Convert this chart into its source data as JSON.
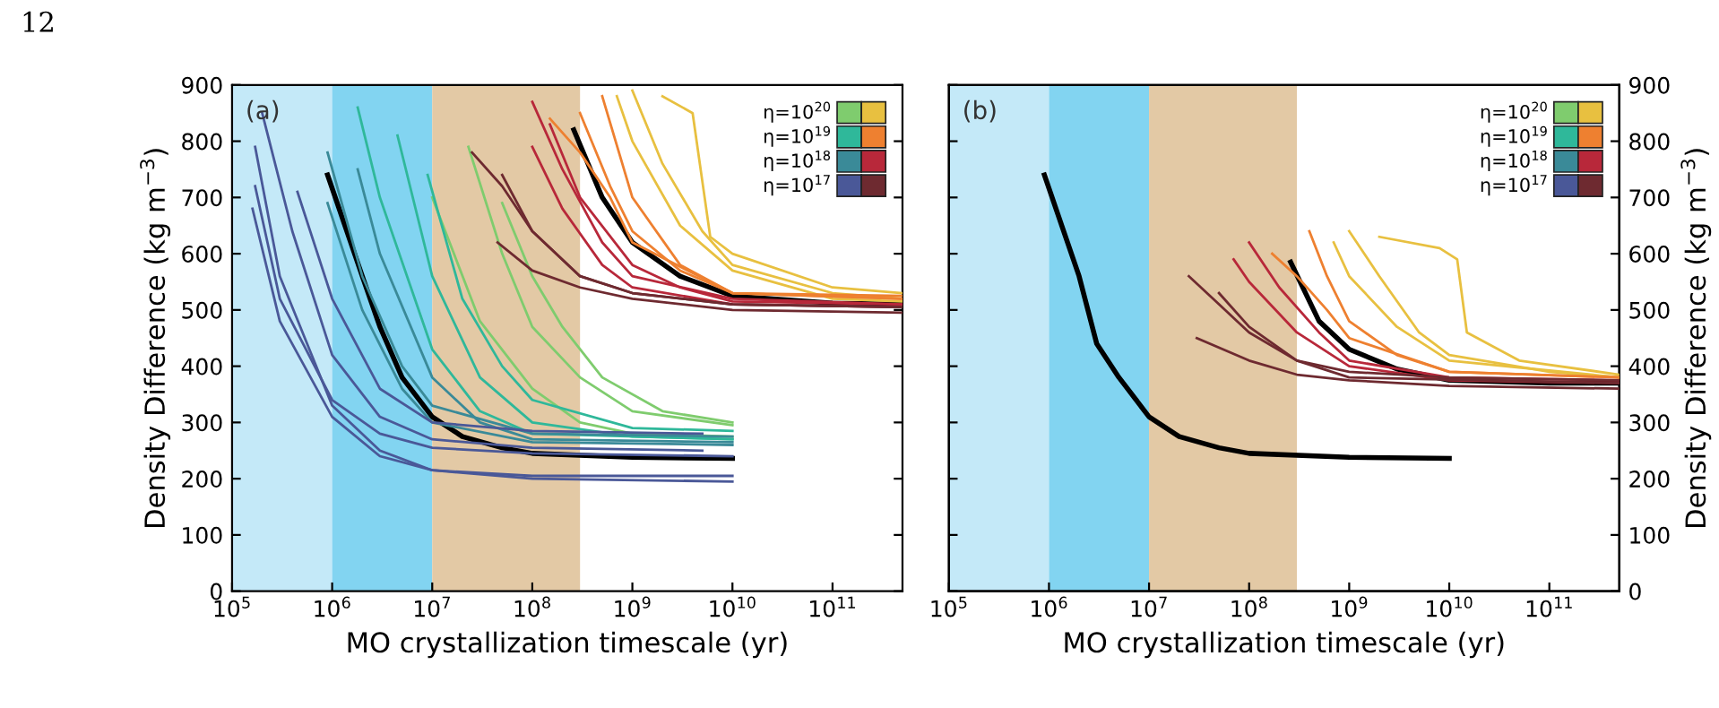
{
  "chart_data": [
    {
      "type": "line",
      "annotations": [
        "12",
        "(a)"
      ],
      "xlabel": "MO crystallization timescale (yr)",
      "ylabel": "Density Difference (kg m$^{−3}$)",
      "log": "x",
      "xlim": [
        100000,
        500000000000
      ],
      "xticks": [
        {
          "value": 100000,
          "label": "10$^{5}$"
        },
        {
          "value": 1000000,
          "label": "10$^{6}$"
        },
        {
          "value": 10000000,
          "label": "10$^{7}$"
        },
        {
          "value": 100000000,
          "label": "10$^{8}$"
        },
        {
          "value": 1000000000,
          "label": "10$^{9}$"
        },
        {
          "value": 10000000000,
          "label": "10$^{10}$"
        },
        {
          "value": 100000000000,
          "label": "10$^{11}$"
        }
      ],
      "ylim": [
        0,
        900
      ],
      "yticks": [
        0,
        100,
        200,
        300,
        400,
        500,
        600,
        700,
        800,
        900
      ],
      "grid": false,
      "legend": "top right",
      "bands": [
        {
          "axis": "x",
          "from": 100000,
          "to": 1000000,
          "color": "#c4e9f8"
        },
        {
          "axis": "x",
          "from": 1000000,
          "to": 10000000,
          "color": "#82d4f1"
        },
        {
          "axis": "x",
          "from": 10000000,
          "to": 300000000,
          "color": "#e3c9a5"
        }
      ],
      "series": [
        {
          "color": "#000000",
          "x": [
            900000,
            2000000,
            3000000,
            5000000,
            10000000,
            20000000,
            50000000,
            100000000,
            1000000000,
            10000000000
          ],
          "values": [
            740,
            560,
            470,
            380,
            310,
            275,
            255,
            245,
            238,
            236
          ]
        },
        {
          "color": "#000000",
          "x": [
            260000000,
            500000000,
            1000000000,
            3000000000,
            10000000000,
            100000000000,
            500000000000
          ],
          "values": [
            820,
            700,
            620,
            560,
            525,
            512,
            510
          ]
        },
        {
          "name": "η=10$^{20}$",
          "color": "#7fcc6e",
          "x": [
            23000000,
            50000000,
            100000000,
            300000000,
            1000000000,
            10000000000
          ],
          "values": [
            790,
            600,
            470,
            380,
            320,
            295
          ]
        },
        {
          "color": "#7fcc6e",
          "x": [
            50000000,
            100000000,
            200000000,
            500000000,
            2000000000,
            10000000000
          ],
          "values": [
            690,
            560,
            470,
            380,
            320,
            300
          ]
        },
        {
          "color": "#7fcc6e",
          "x": [
            10000000,
            30000000,
            100000000,
            300000000,
            1000000000,
            10000000000
          ],
          "values": [
            700,
            480,
            360,
            300,
            280,
            275
          ]
        },
        {
          "color": "#e8c040",
          "x": [
            1000000000,
            2000000000,
            5000000000,
            10000000000,
            100000000000,
            500000000000
          ],
          "values": [
            890,
            760,
            640,
            580,
            530,
            520
          ]
        },
        {
          "color": "#e8c040",
          "x": [
            2000000000,
            4000000000,
            6000000000,
            10000000000,
            100000000000,
            500000000000
          ],
          "values": [
            880,
            850,
            630,
            600,
            540,
            530
          ]
        },
        {
          "color": "#e8c040",
          "x": [
            700000000,
            1000000000,
            3000000000,
            10000000000,
            100000000000,
            500000000000
          ],
          "values": [
            880,
            800,
            650,
            570,
            520,
            515
          ]
        },
        {
          "name": "η=10$^{19}$",
          "color": "#2fb89a",
          "x": [
            1800000,
            3000000,
            10000000,
            30000000,
            100000000,
            10000000000
          ],
          "values": [
            860,
            700,
            430,
            320,
            280,
            270
          ]
        },
        {
          "color": "#2fb89a",
          "x": [
            4500000,
            10000000,
            30000000,
            100000000,
            1000000000,
            10000000000
          ],
          "values": [
            810,
            560,
            380,
            300,
            275,
            270
          ]
        },
        {
          "color": "#2fb89a",
          "x": [
            9000000,
            20000000,
            50000000,
            100000000,
            1000000000,
            10000000000
          ],
          "values": [
            740,
            520,
            400,
            340,
            290,
            285
          ]
        },
        {
          "color": "#ee8030",
          "x": [
            150000000,
            300000000,
            600000000,
            1000000000,
            10000000000,
            500000000000
          ],
          "values": [
            840,
            780,
            700,
            620,
            530,
            520
          ]
        },
        {
          "color": "#ee8030",
          "x": [
            500000000,
            1000000000,
            3000000000,
            10000000000,
            500000000000
          ],
          "values": [
            880,
            700,
            580,
            530,
            520
          ]
        },
        {
          "color": "#ee8030",
          "x": [
            300000000,
            600000000,
            1000000000,
            3000000000,
            10000000000,
            500000000000
          ],
          "values": [
            850,
            720,
            640,
            570,
            530,
            525
          ]
        },
        {
          "name": "η=10$^{18}$",
          "color": "#3a8a98",
          "x": [
            900000,
            2000000,
            5000000,
            10000000,
            100000000,
            10000000000
          ],
          "values": [
            780,
            560,
            400,
            330,
            280,
            275
          ]
        },
        {
          "color": "#3a8a98",
          "x": [
            1800000,
            3000000,
            10000000,
            30000000,
            100000000,
            10000000000
          ],
          "values": [
            750,
            600,
            380,
            300,
            270,
            265
          ]
        },
        {
          "color": "#3a8a98",
          "x": [
            900000,
            2000000,
            5000000,
            10000000,
            100000000,
            10000000000
          ],
          "values": [
            690,
            500,
            360,
            300,
            265,
            260
          ]
        },
        {
          "color": "#b8283a",
          "x": [
            100000000,
            200000000,
            500000000,
            1000000000,
            10000000000,
            500000000000
          ],
          "values": [
            870,
            750,
            620,
            560,
            520,
            510
          ]
        },
        {
          "color": "#b8283a",
          "x": [
            100000000,
            200000000,
            500000000,
            1000000000,
            10000000000,
            500000000000
          ],
          "values": [
            790,
            680,
            580,
            540,
            510,
            505
          ]
        },
        {
          "color": "#b8283a",
          "x": [
            150000000,
            300000000,
            1000000000,
            3000000000,
            10000000000,
            500000000000
          ],
          "values": [
            830,
            700,
            580,
            540,
            515,
            510
          ]
        },
        {
          "name": "η=10$^{17}$",
          "color": "#4a5898",
          "x": [
            170000,
            300000,
            1000000,
            3000000,
            10000000,
            100000000,
            10000000000
          ],
          "values": [
            790,
            560,
            330,
            250,
            215,
            200,
            195
          ]
        },
        {
          "color": "#4a5898",
          "x": [
            170000,
            300000,
            1000000,
            3000000,
            10000000,
            100000000,
            10000000000
          ],
          "values": [
            720,
            520,
            340,
            280,
            255,
            245,
            240
          ]
        },
        {
          "color": "#4a5898",
          "x": [
            200000,
            400000,
            1000000,
            3000000,
            10000000,
            100000000,
            5000000000
          ],
          "values": [
            850,
            640,
            420,
            310,
            270,
            255,
            250
          ]
        },
        {
          "color": "#4a5898",
          "x": [
            160000,
            300000,
            1000000,
            3000000,
            10000000,
            100000000,
            10000000000
          ],
          "values": [
            680,
            480,
            310,
            240,
            215,
            205,
            205
          ]
        },
        {
          "color": "#4a5898",
          "x": [
            450000,
            1000000,
            3000000,
            10000000,
            100000000,
            5000000000
          ],
          "values": [
            710,
            520,
            360,
            300,
            285,
            280
          ]
        },
        {
          "color": "#6e2a30",
          "x": [
            25000000,
            50000000,
            100000000,
            300000000,
            1000000000,
            10000000000,
            500000000000
          ],
          "values": [
            780,
            720,
            640,
            560,
            530,
            510,
            505
          ]
        },
        {
          "color": "#6e2a30",
          "x": [
            45000000,
            100000000,
            300000000,
            1000000000,
            10000000000,
            500000000000
          ],
          "values": [
            620,
            570,
            540,
            520,
            500,
            495
          ]
        },
        {
          "color": "#6e2a30",
          "x": [
            50000000,
            100000000,
            300000000,
            1000000000,
            10000000000,
            500000000000
          ],
          "values": [
            740,
            640,
            560,
            530,
            510,
            505
          ]
        }
      ]
    },
    {
      "type": "line",
      "annotations": [
        "(b)"
      ],
      "xlabel": "MO crystallization timescale (yr)",
      "y2label": "Density Difference (kg m$^{−3}$)",
      "log": "x",
      "xlim": [
        100000,
        500000000000
      ],
      "xticks": [
        {
          "value": 100000,
          "label": "10$^{5}$"
        },
        {
          "value": 1000000,
          "label": "10$^{6}$"
        },
        {
          "value": 10000000,
          "label": "10$^{7}$"
        },
        {
          "value": 100000000,
          "label": "10$^{8}$"
        },
        {
          "value": 1000000000,
          "label": "10$^{9}$"
        },
        {
          "value": 10000000000,
          "label": "10$^{10}$"
        },
        {
          "value": 100000000000,
          "label": "10$^{11}$"
        }
      ],
      "y2lim": [
        0,
        900
      ],
      "y2ticks": [
        0,
        100,
        200,
        300,
        400,
        500,
        600,
        700,
        800,
        900
      ],
      "grid": false,
      "legend": "top right",
      "bands": [
        {
          "axis": "x",
          "from": 100000,
          "to": 1000000,
          "color": "#c4e9f8"
        },
        {
          "axis": "x",
          "from": 1000000,
          "to": 10000000,
          "color": "#82d4f1"
        },
        {
          "axis": "x",
          "from": 10000000,
          "to": 300000000,
          "color": "#e3c9a5"
        }
      ],
      "series": [
        {
          "color": "#000000",
          "axis": "y2",
          "x": [
            900000,
            2000000,
            3000000,
            5000000,
            10000000,
            20000000,
            50000000,
            100000000,
            1000000000,
            10000000000
          ],
          "values": [
            740,
            560,
            440,
            380,
            310,
            275,
            255,
            245,
            238,
            236
          ]
        },
        {
          "color": "#000000",
          "axis": "y2",
          "x": [
            260000000,
            500000000,
            1000000000,
            3000000000,
            10000000000,
            100000000000,
            500000000000
          ],
          "values": [
            585,
            480,
            430,
            395,
            375,
            370,
            370
          ]
        },
        {
          "name": "η=10$^{20}$",
          "color": "#7fcc6e",
          "axis": "y2"
        },
        {
          "color": "#e8c040",
          "axis": "y2",
          "x": [
            1000000000,
            2000000000,
            5000000000,
            10000000000,
            100000000000,
            500000000000
          ],
          "values": [
            640,
            560,
            460,
            420,
            390,
            380
          ]
        },
        {
          "color": "#e8c040",
          "axis": "y2",
          "x": [
            2000000000,
            8000000000,
            12000000000,
            15000000000,
            50000000000,
            500000000000
          ],
          "values": [
            630,
            610,
            590,
            460,
            410,
            385
          ]
        },
        {
          "color": "#e8c040",
          "axis": "y2",
          "x": [
            700000000,
            1000000000,
            3000000000,
            10000000000,
            500000000000
          ],
          "values": [
            620,
            560,
            470,
            410,
            380
          ]
        },
        {
          "name": "η=10$^{19}$",
          "color": "#2fb89a",
          "axis": "y2"
        },
        {
          "color": "#ee8030",
          "axis": "y2",
          "x": [
            170000000,
            300000000,
            600000000,
            1000000000,
            10000000000,
            500000000000
          ],
          "values": [
            600,
            560,
            500,
            450,
            390,
            380
          ]
        },
        {
          "color": "#ee8030",
          "axis": "y2",
          "x": [
            400000000,
            600000000,
            1000000000,
            3000000000,
            10000000000,
            500000000000
          ],
          "values": [
            640,
            560,
            480,
            420,
            390,
            380
          ]
        },
        {
          "name": "η=10$^{18}$",
          "color": "#3a8a98",
          "axis": "y2"
        },
        {
          "color": "#b8283a",
          "axis": "y2",
          "x": [
            100000000,
            200000000,
            500000000,
            1000000000,
            10000000000,
            500000000000
          ],
          "values": [
            620,
            540,
            460,
            410,
            380,
            375
          ]
        },
        {
          "color": "#b8283a",
          "axis": "y2",
          "x": [
            70000000,
            100000000,
            300000000,
            1000000000,
            10000000000,
            500000000000
          ],
          "values": [
            590,
            550,
            460,
            400,
            375,
            370
          ]
        },
        {
          "name": "η=10$^{17}$",
          "color": "#4a5898",
          "axis": "y2"
        },
        {
          "color": "#6e2a30",
          "axis": "y2",
          "x": [
            50000000,
            100000000,
            300000000,
            1000000000,
            10000000000,
            500000000000
          ],
          "values": [
            530,
            470,
            410,
            390,
            380,
            375
          ]
        },
        {
          "color": "#6e2a30",
          "axis": "y2",
          "x": [
            30000000,
            100000000,
            300000000,
            1000000000,
            10000000000,
            500000000000
          ],
          "values": [
            450,
            410,
            385,
            375,
            365,
            360
          ]
        },
        {
          "color": "#6e2a30",
          "axis": "y2",
          "x": [
            25000000,
            50000000,
            100000000,
            300000000,
            1000000000,
            500000000000
          ],
          "values": [
            560,
            510,
            460,
            410,
            380,
            370
          ]
        }
      ]
    }
  ]
}
